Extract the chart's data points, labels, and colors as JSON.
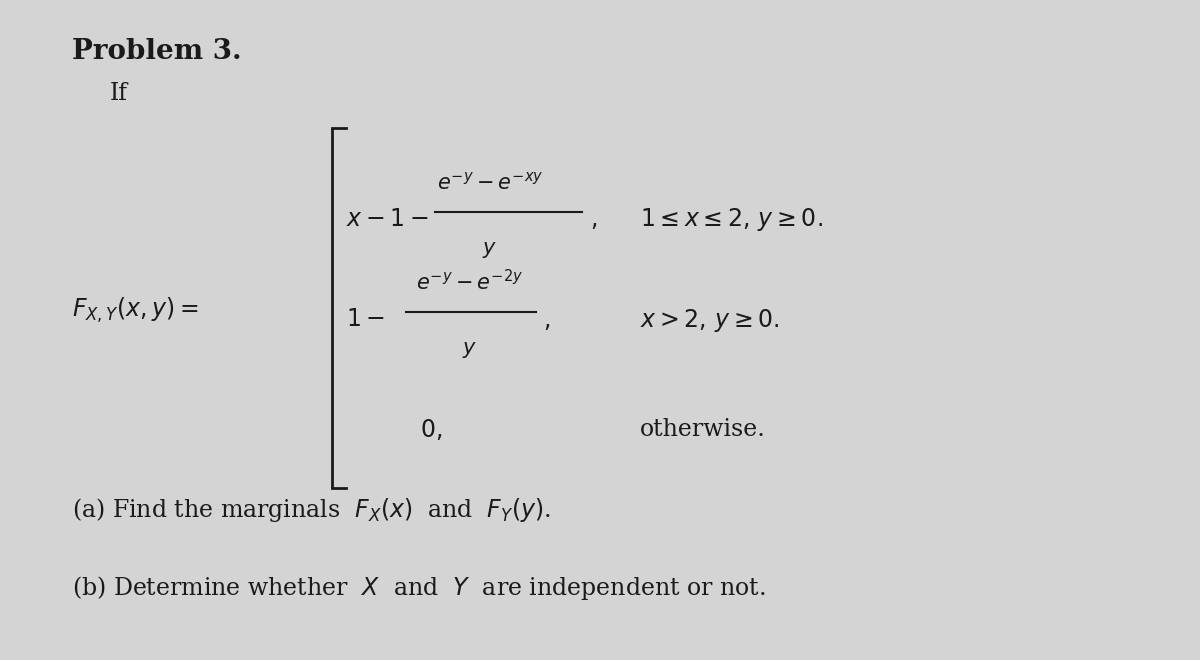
{
  "background_color": "#d4d4d4",
  "text_color": "#1a1a1a",
  "title": "Problem 3.",
  "subtitle": "If",
  "fs_title": 20,
  "fs_body": 17,
  "fs_math": 17,
  "fs_mathsm": 15
}
